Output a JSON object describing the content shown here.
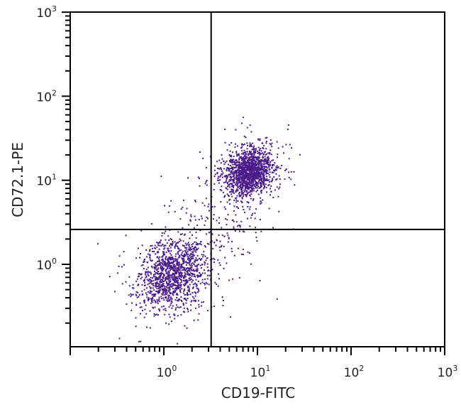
{
  "chart_data": {
    "type": "scatter",
    "title": "",
    "xlabel": "CD19-FITC",
    "ylabel": "CD72.1-PE",
    "xscale": "log",
    "yscale": "log",
    "xlim": [
      0.1,
      1000
    ],
    "ylim": [
      0.1,
      1000
    ],
    "x_ticks": [
      {
        "base": "10",
        "exp": "0",
        "value": 1
      },
      {
        "base": "10",
        "exp": "1",
        "value": 10
      },
      {
        "base": "10",
        "exp": "2",
        "value": 100
      },
      {
        "base": "10",
        "exp": "3",
        "value": 1000
      }
    ],
    "y_ticks": [
      {
        "base": "10",
        "exp": "0",
        "value": 1
      },
      {
        "base": "10",
        "exp": "1",
        "value": 10
      },
      {
        "base": "10",
        "exp": "2",
        "value": 100
      },
      {
        "base": "10",
        "exp": "3",
        "value": 1000
      }
    ],
    "quadrant_gates": {
      "x": 3.2,
      "y": 2.6
    },
    "point_color": "#4b1a8a",
    "grid": false,
    "legend": null,
    "populations": [
      {
        "name": "CD19- CD72.1- (lower-left)",
        "center_x": 1.2,
        "center_y": 0.75,
        "spread_log_x": 0.17,
        "spread_log_y": 0.2,
        "count": 1300
      },
      {
        "name": "CD19+ CD72.1+ (upper-right)",
        "center_x": 8.0,
        "center_y": 13,
        "spread_log_x": 0.12,
        "spread_log_y": 0.13,
        "count": 1500
      },
      {
        "name": "scattered intermediates",
        "center_x": 4.0,
        "center_y": 3.0,
        "spread_log_x": 0.25,
        "spread_log_y": 0.3,
        "count": 200
      }
    ]
  },
  "axes": {
    "x_title": "CD19-FITC",
    "y_title": "CD72.1-PE"
  }
}
